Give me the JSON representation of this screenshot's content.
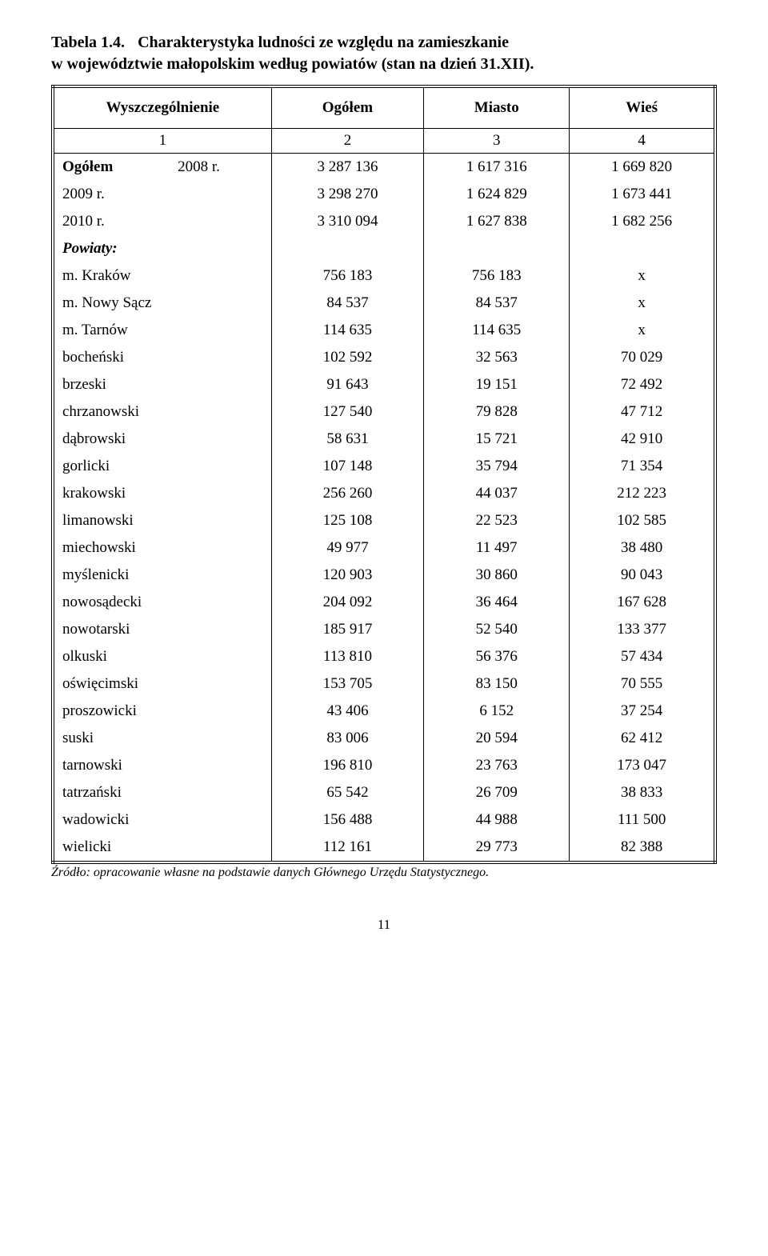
{
  "title": {
    "label": "Tabela 1.4.",
    "line1": "Charakterystyka ludności ze względu na zamieszkanie",
    "line2": "w województwie małopolskim według powiatów (stan na dzień 31.XII)."
  },
  "headers": {
    "col1": "Wyszczególnienie",
    "col2": "Ogółem",
    "col3": "Miasto",
    "col4": "Wieś"
  },
  "index_row": [
    "1",
    "2",
    "3",
    "4"
  ],
  "ogolem_label": "Ogółem",
  "years": [
    {
      "label": "2008 r.",
      "c2": "3 287 136",
      "c3": "1 617 316",
      "c4": "1 669 820"
    },
    {
      "label": "2009 r.",
      "c2": "3 298 270",
      "c3": "1 624 829",
      "c4": "1 673 441"
    },
    {
      "label": "2010 r.",
      "c2": "3 310 094",
      "c3": "1 627 838",
      "c4": "1 682 256"
    }
  ],
  "powiaty_label": "Powiaty:",
  "rows": [
    {
      "name": "m. Kraków",
      "c2": "756 183",
      "c3": "756 183",
      "c4": "x"
    },
    {
      "name": "m. Nowy Sącz",
      "c2": "84 537",
      "c3": "84 537",
      "c4": "x"
    },
    {
      "name": "m. Tarnów",
      "c2": "114 635",
      "c3": "114 635",
      "c4": "x"
    },
    {
      "name": "bocheński",
      "c2": "102 592",
      "c3": "32 563",
      "c4": "70 029"
    },
    {
      "name": "brzeski",
      "c2": "91 643",
      "c3": "19 151",
      "c4": "72 492"
    },
    {
      "name": "chrzanowski",
      "c2": "127 540",
      "c3": "79 828",
      "c4": "47 712"
    },
    {
      "name": "dąbrowski",
      "c2": "58 631",
      "c3": "15 721",
      "c4": "42 910"
    },
    {
      "name": "gorlicki",
      "c2": "107 148",
      "c3": "35 794",
      "c4": "71 354"
    },
    {
      "name": "krakowski",
      "c2": "256 260",
      "c3": "44 037",
      "c4": "212 223"
    },
    {
      "name": "limanowski",
      "c2": "125 108",
      "c3": "22 523",
      "c4": "102 585"
    },
    {
      "name": "miechowski",
      "c2": "49 977",
      "c3": "11 497",
      "c4": "38 480"
    },
    {
      "name": "myślenicki",
      "c2": "120 903",
      "c3": "30 860",
      "c4": "90 043"
    },
    {
      "name": "nowosądecki",
      "c2": "204 092",
      "c3": "36 464",
      "c4": "167 628"
    },
    {
      "name": "nowotarski",
      "c2": "185 917",
      "c3": "52 540",
      "c4": "133 377"
    },
    {
      "name": "olkuski",
      "c2": "113 810",
      "c3": "56 376",
      "c4": "57 434"
    },
    {
      "name": "oświęcimski",
      "c2": "153 705",
      "c3": "83 150",
      "c4": "70 555"
    },
    {
      "name": "proszowicki",
      "c2": "43 406",
      "c3": "6 152",
      "c4": "37 254"
    },
    {
      "name": "suski",
      "c2": "83 006",
      "c3": "20 594",
      "c4": "62 412"
    },
    {
      "name": "tarnowski",
      "c2": "196 810",
      "c3": "23 763",
      "c4": "173 047"
    },
    {
      "name": "tatrzański",
      "c2": "65 542",
      "c3": "26 709",
      "c4": "38 833"
    },
    {
      "name": "wadowicki",
      "c2": "156 488",
      "c3": "44 988",
      "c4": "111 500"
    },
    {
      "name": "wielicki",
      "c2": "112 161",
      "c3": "29 773",
      "c4": "82 388"
    }
  ],
  "footer": "Źródło: opracowanie własne na podstawie danych  Głównego Urzędu Statystycznego.",
  "page_number": "11"
}
